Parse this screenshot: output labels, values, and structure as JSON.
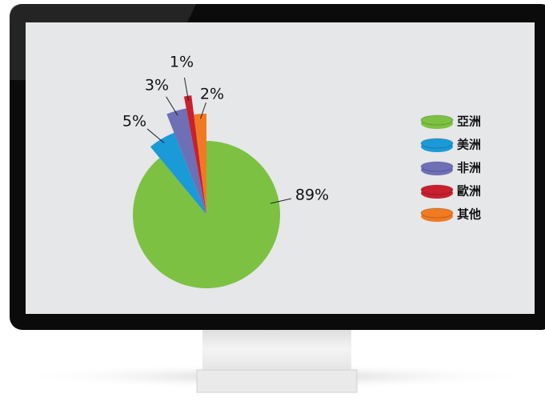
{
  "chart_data": {
    "type": "pie",
    "categories": [
      "亞洲",
      "美洲",
      "非洲",
      "歐洲",
      "其他"
    ],
    "values": [
      89,
      5,
      3,
      1,
      2
    ],
    "value_labels": [
      "89%",
      "5%",
      "3%",
      "1%",
      "2%"
    ],
    "colors": [
      "#7dc142",
      "#1a9ad6",
      "#6e6fb5",
      "#c8202f",
      "#f07a22"
    ],
    "legend": "right"
  }
}
